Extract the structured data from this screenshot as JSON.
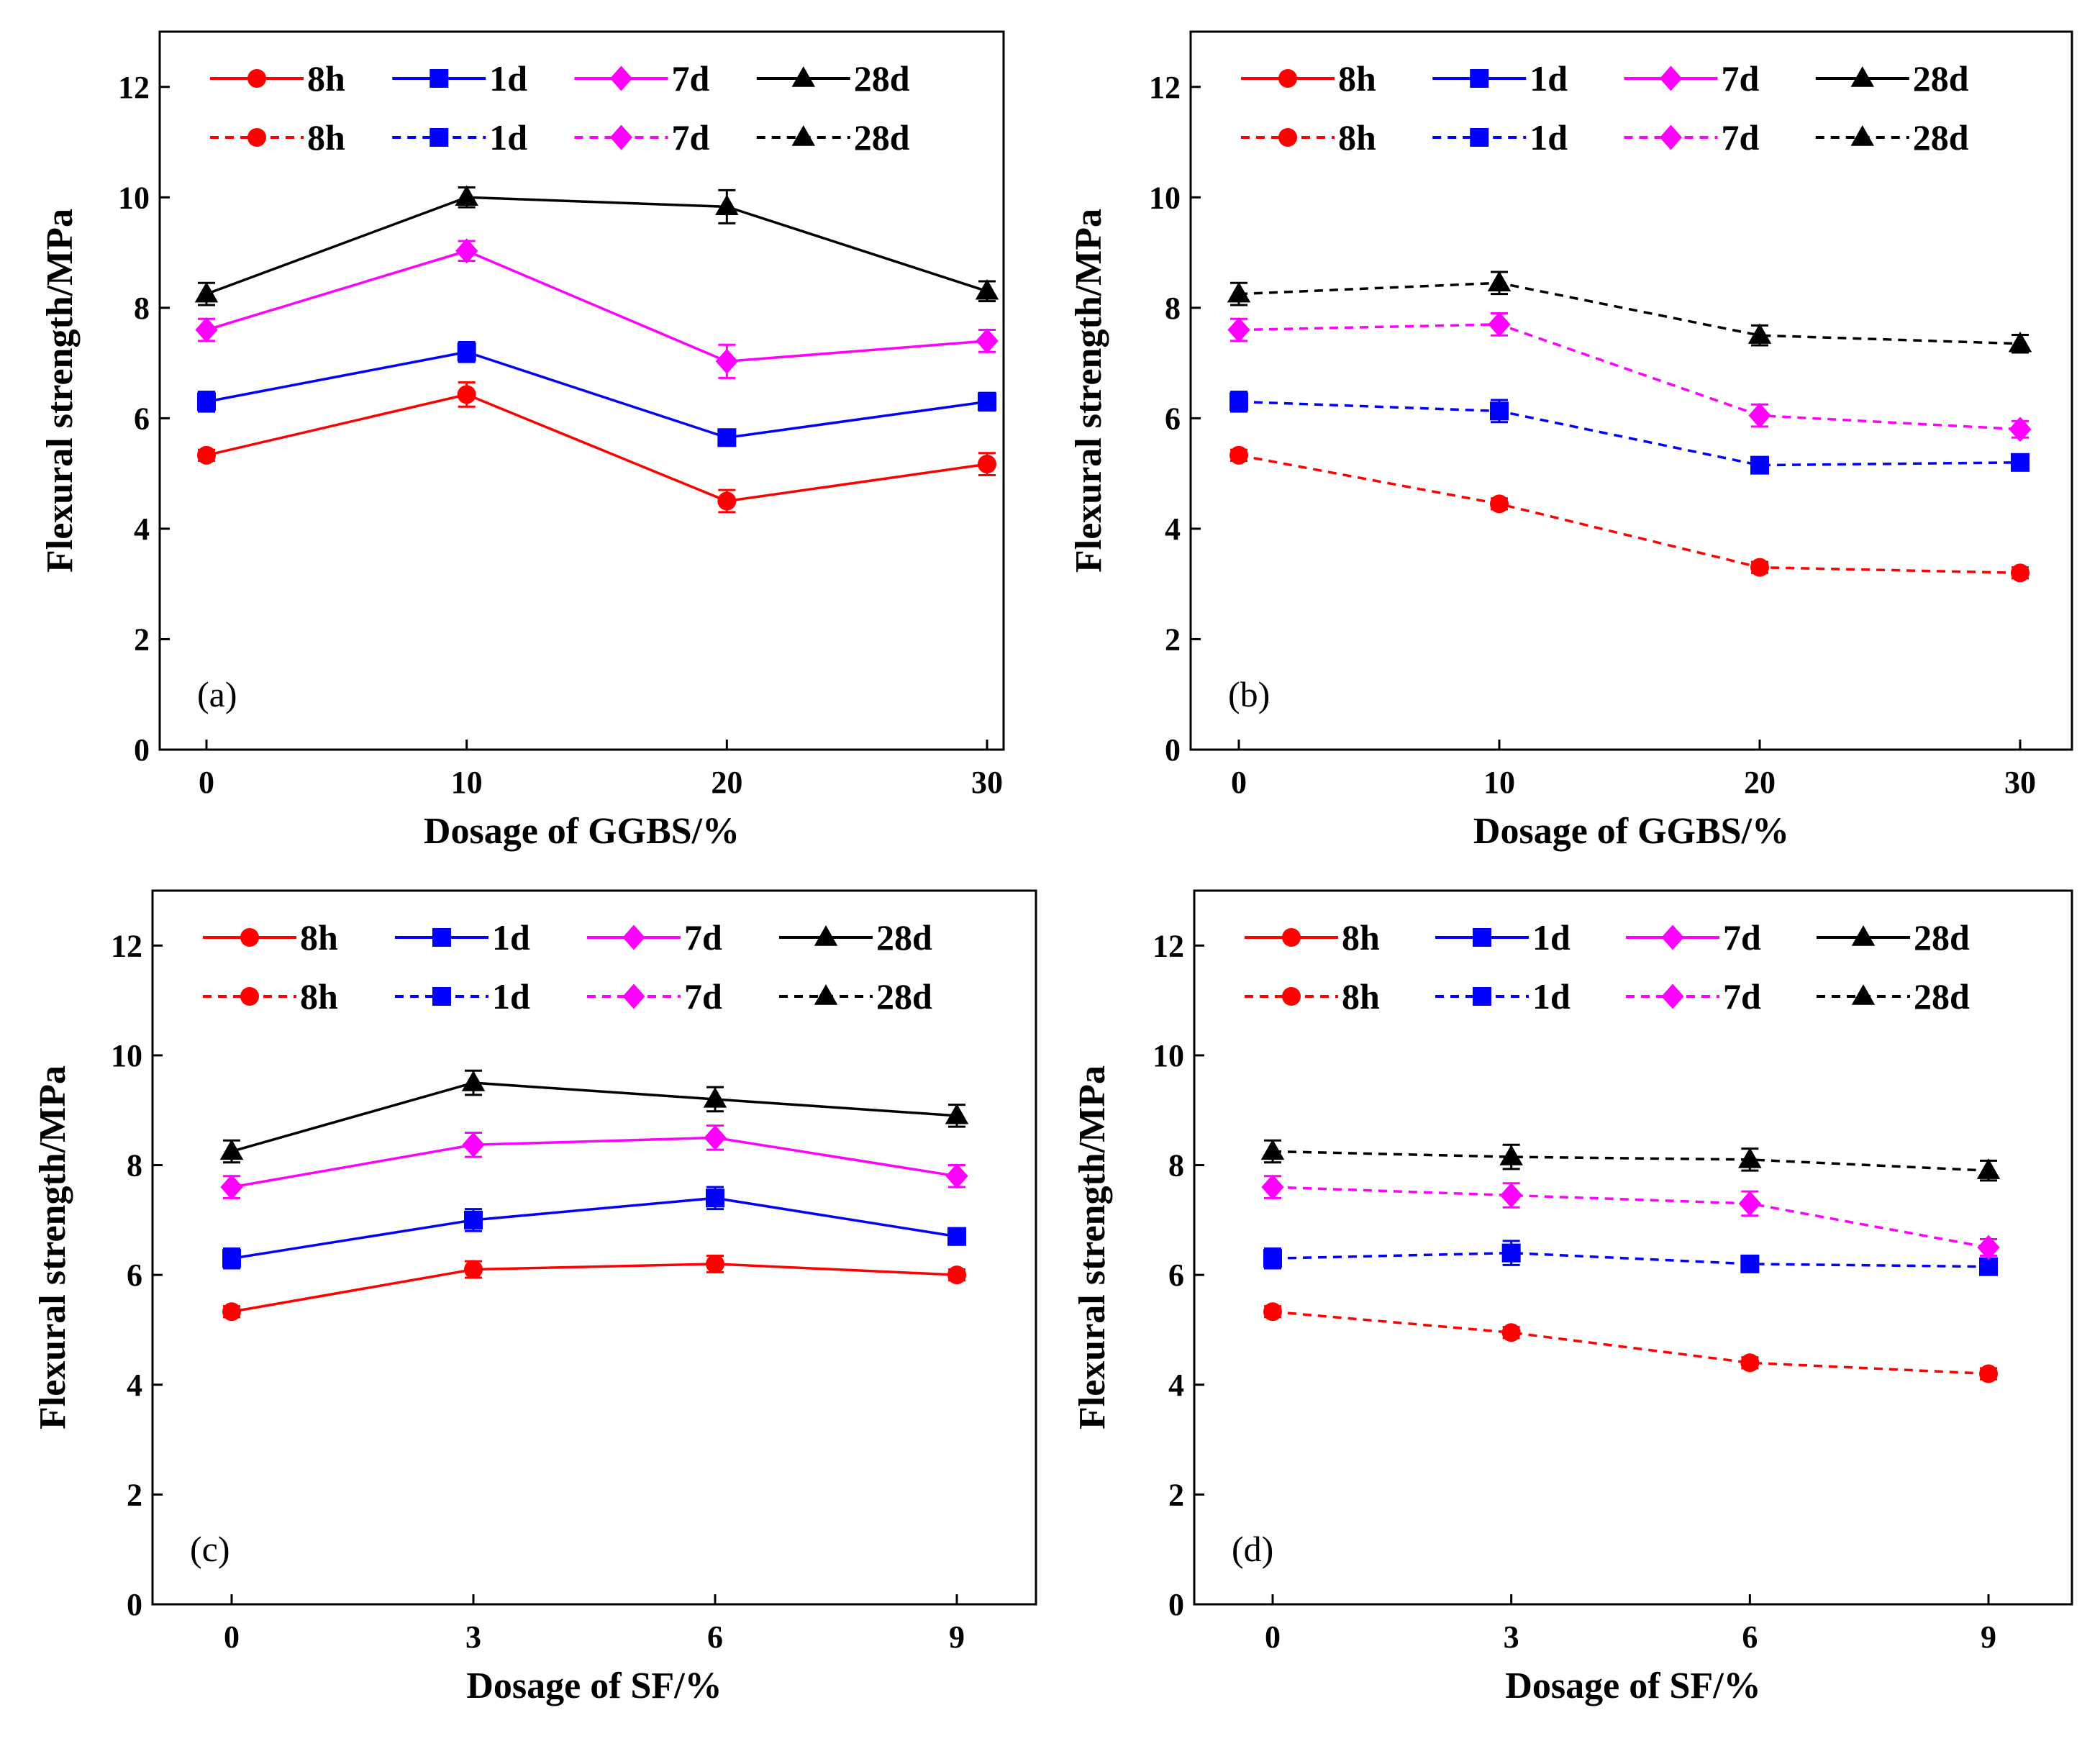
{
  "figure": {
    "y_axis_label": "Flexural strength/MPa",
    "legend_labels": [
      "8h",
      "1d",
      "7d",
      "28d"
    ]
  },
  "chart_data": [
    {
      "type": "line",
      "panel_label": "(a)",
      "xlabel": "Dosage of GGBS/%",
      "ylabel": "Flexural strength/MPa",
      "x": [
        0,
        10,
        20,
        30
      ],
      "xticks": [
        "0",
        "10",
        "20",
        "30"
      ],
      "xlim": [
        -3,
        31.5
      ],
      "ylim": [
        0,
        13
      ],
      "yticks": [
        0,
        2,
        4,
        6,
        8,
        10,
        12
      ],
      "legend_position": "top",
      "series": [
        {
          "name": "8h",
          "style": "solid",
          "color": "#ff0000",
          "marker": "circle",
          "values": [
            5.33,
            6.43,
            4.5,
            5.17
          ],
          "errors": [
            0.1,
            0.22,
            0.2,
            0.2
          ]
        },
        {
          "name": "1d",
          "style": "solid",
          "color": "#0000ff",
          "marker": "square",
          "values": [
            6.3,
            7.2,
            5.65,
            6.3
          ],
          "errors": [
            0.18,
            0.18,
            0.14,
            0.16
          ]
        },
        {
          "name": "7d",
          "style": "solid",
          "color": "#ff00ff",
          "marker": "diamond",
          "values": [
            7.6,
            9.03,
            7.03,
            7.4
          ],
          "errors": [
            0.2,
            0.18,
            0.3,
            0.2
          ]
        },
        {
          "name": "28d",
          "style": "solid",
          "color": "#000000",
          "marker": "triangle",
          "values": [
            8.25,
            10.0,
            9.83,
            8.3
          ],
          "errors": [
            0.2,
            0.18,
            0.3,
            0.18
          ]
        },
        {
          "name": "8h",
          "style": "dashed",
          "color": "#ff0000",
          "marker": "circle",
          "values": null,
          "errors": null
        },
        {
          "name": "1d",
          "style": "dashed",
          "color": "#0000ff",
          "marker": "square",
          "values": null,
          "errors": null
        },
        {
          "name": "7d",
          "style": "dashed",
          "color": "#ff00ff",
          "marker": "diamond",
          "values": null,
          "errors": null
        },
        {
          "name": "28d",
          "style": "dashed",
          "color": "#000000",
          "marker": "triangle",
          "values": null,
          "errors": null
        }
      ]
    },
    {
      "type": "line",
      "panel_label": "(b)",
      "xlabel": "Dosage of GGBS/%",
      "ylabel": "Flexural strength/MPa",
      "x": [
        0,
        10,
        20,
        30
      ],
      "xticks": [
        "0",
        "10",
        "20",
        "30"
      ],
      "xlim": [
        -3,
        31.5
      ],
      "ylim": [
        0,
        13
      ],
      "yticks": [
        0,
        2,
        4,
        6,
        8,
        10,
        12
      ],
      "legend_position": "top",
      "series": [
        {
          "name": "8h",
          "style": "solid",
          "color": "#ff0000",
          "marker": "circle",
          "values": null,
          "errors": null
        },
        {
          "name": "1d",
          "style": "solid",
          "color": "#0000ff",
          "marker": "square",
          "values": null,
          "errors": null
        },
        {
          "name": "7d",
          "style": "solid",
          "color": "#ff00ff",
          "marker": "diamond",
          "values": null,
          "errors": null
        },
        {
          "name": "28d",
          "style": "solid",
          "color": "#000000",
          "marker": "triangle",
          "values": null,
          "errors": null
        },
        {
          "name": "8h",
          "style": "dashed",
          "color": "#ff0000",
          "marker": "circle",
          "values": [
            5.33,
            4.45,
            3.3,
            3.2
          ],
          "errors": [
            0.1,
            0.1,
            0.1,
            0.1
          ]
        },
        {
          "name": "1d",
          "style": "dashed",
          "color": "#0000ff",
          "marker": "square",
          "values": [
            6.3,
            6.13,
            5.15,
            5.2
          ],
          "errors": [
            0.18,
            0.2,
            0.1,
            0.1
          ]
        },
        {
          "name": "7d",
          "style": "dashed",
          "color": "#ff00ff",
          "marker": "diamond",
          "values": [
            7.6,
            7.7,
            6.05,
            5.8
          ],
          "errors": [
            0.2,
            0.2,
            0.2,
            0.15
          ]
        },
        {
          "name": "28d",
          "style": "dashed",
          "color": "#000000",
          "marker": "triangle",
          "values": [
            8.25,
            8.45,
            7.5,
            7.35
          ],
          "errors": [
            0.2,
            0.2,
            0.18,
            0.16
          ]
        }
      ]
    },
    {
      "type": "line",
      "panel_label": "(c)",
      "xlabel": "Dosage of SF/%",
      "ylabel": "Flexural strength/MPa",
      "x": [
        0,
        3,
        6,
        9
      ],
      "xticks": [
        "0",
        "3",
        "6",
        "9"
      ],
      "xlim": [
        -1,
        10
      ],
      "ylim": [
        0,
        13
      ],
      "yticks": [
        0,
        2,
        4,
        6,
        8,
        10,
        12
      ],
      "legend_position": "top",
      "series": [
        {
          "name": "8h",
          "style": "solid",
          "color": "#ff0000",
          "marker": "circle",
          "values": [
            5.33,
            6.1,
            6.2,
            6.0
          ],
          "errors": [
            0.1,
            0.15,
            0.15,
            0.1
          ]
        },
        {
          "name": "1d",
          "style": "solid",
          "color": "#0000ff",
          "marker": "square",
          "values": [
            6.3,
            7.0,
            7.4,
            6.7
          ],
          "errors": [
            0.18,
            0.2,
            0.2,
            0.15
          ]
        },
        {
          "name": "7d",
          "style": "solid",
          "color": "#ff00ff",
          "marker": "diamond",
          "values": [
            7.6,
            8.37,
            8.5,
            7.8
          ],
          "errors": [
            0.2,
            0.22,
            0.22,
            0.2
          ]
        },
        {
          "name": "28d",
          "style": "solid",
          "color": "#000000",
          "marker": "triangle",
          "values": [
            8.25,
            9.5,
            9.2,
            8.9
          ],
          "errors": [
            0.2,
            0.22,
            0.22,
            0.2
          ]
        },
        {
          "name": "8h",
          "style": "dashed",
          "color": "#ff0000",
          "marker": "circle",
          "values": null,
          "errors": null
        },
        {
          "name": "1d",
          "style": "dashed",
          "color": "#0000ff",
          "marker": "square",
          "values": null,
          "errors": null
        },
        {
          "name": "7d",
          "style": "dashed",
          "color": "#ff00ff",
          "marker": "diamond",
          "values": null,
          "errors": null
        },
        {
          "name": "28d",
          "style": "dashed",
          "color": "#000000",
          "marker": "triangle",
          "values": null,
          "errors": null
        }
      ]
    },
    {
      "type": "line",
      "panel_label": "(d)",
      "xlabel": "Dosage of SF/%",
      "ylabel": "Flexural strength/MPa",
      "x": [
        0,
        3,
        6,
        9
      ],
      "xticks": [
        "0",
        "3",
        "6",
        "9"
      ],
      "xlim": [
        -1,
        10
      ],
      "ylim": [
        0,
        13
      ],
      "yticks": [
        0,
        2,
        4,
        6,
        8,
        10,
        12
      ],
      "legend_position": "top",
      "series": [
        {
          "name": "8h",
          "style": "solid",
          "color": "#ff0000",
          "marker": "circle",
          "values": null,
          "errors": null
        },
        {
          "name": "1d",
          "style": "solid",
          "color": "#0000ff",
          "marker": "square",
          "values": null,
          "errors": null
        },
        {
          "name": "7d",
          "style": "solid",
          "color": "#ff00ff",
          "marker": "diamond",
          "values": null,
          "errors": null
        },
        {
          "name": "28d",
          "style": "solid",
          "color": "#000000",
          "marker": "triangle",
          "values": null,
          "errors": null
        },
        {
          "name": "8h",
          "style": "dashed",
          "color": "#ff0000",
          "marker": "circle",
          "values": [
            5.33,
            4.95,
            4.4,
            4.2
          ],
          "errors": [
            0.1,
            0.1,
            0.1,
            0.1
          ]
        },
        {
          "name": "1d",
          "style": "dashed",
          "color": "#0000ff",
          "marker": "square",
          "values": [
            6.3,
            6.4,
            6.2,
            6.15
          ],
          "errors": [
            0.18,
            0.22,
            0.12,
            0.1
          ]
        },
        {
          "name": "7d",
          "style": "dashed",
          "color": "#ff00ff",
          "marker": "diamond",
          "values": [
            7.6,
            7.45,
            7.3,
            6.5
          ],
          "errors": [
            0.2,
            0.22,
            0.22,
            0.15
          ]
        },
        {
          "name": "28d",
          "style": "dashed",
          "color": "#000000",
          "marker": "triangle",
          "values": [
            8.25,
            8.15,
            8.1,
            7.9
          ],
          "errors": [
            0.2,
            0.22,
            0.2,
            0.18
          ]
        }
      ]
    }
  ]
}
